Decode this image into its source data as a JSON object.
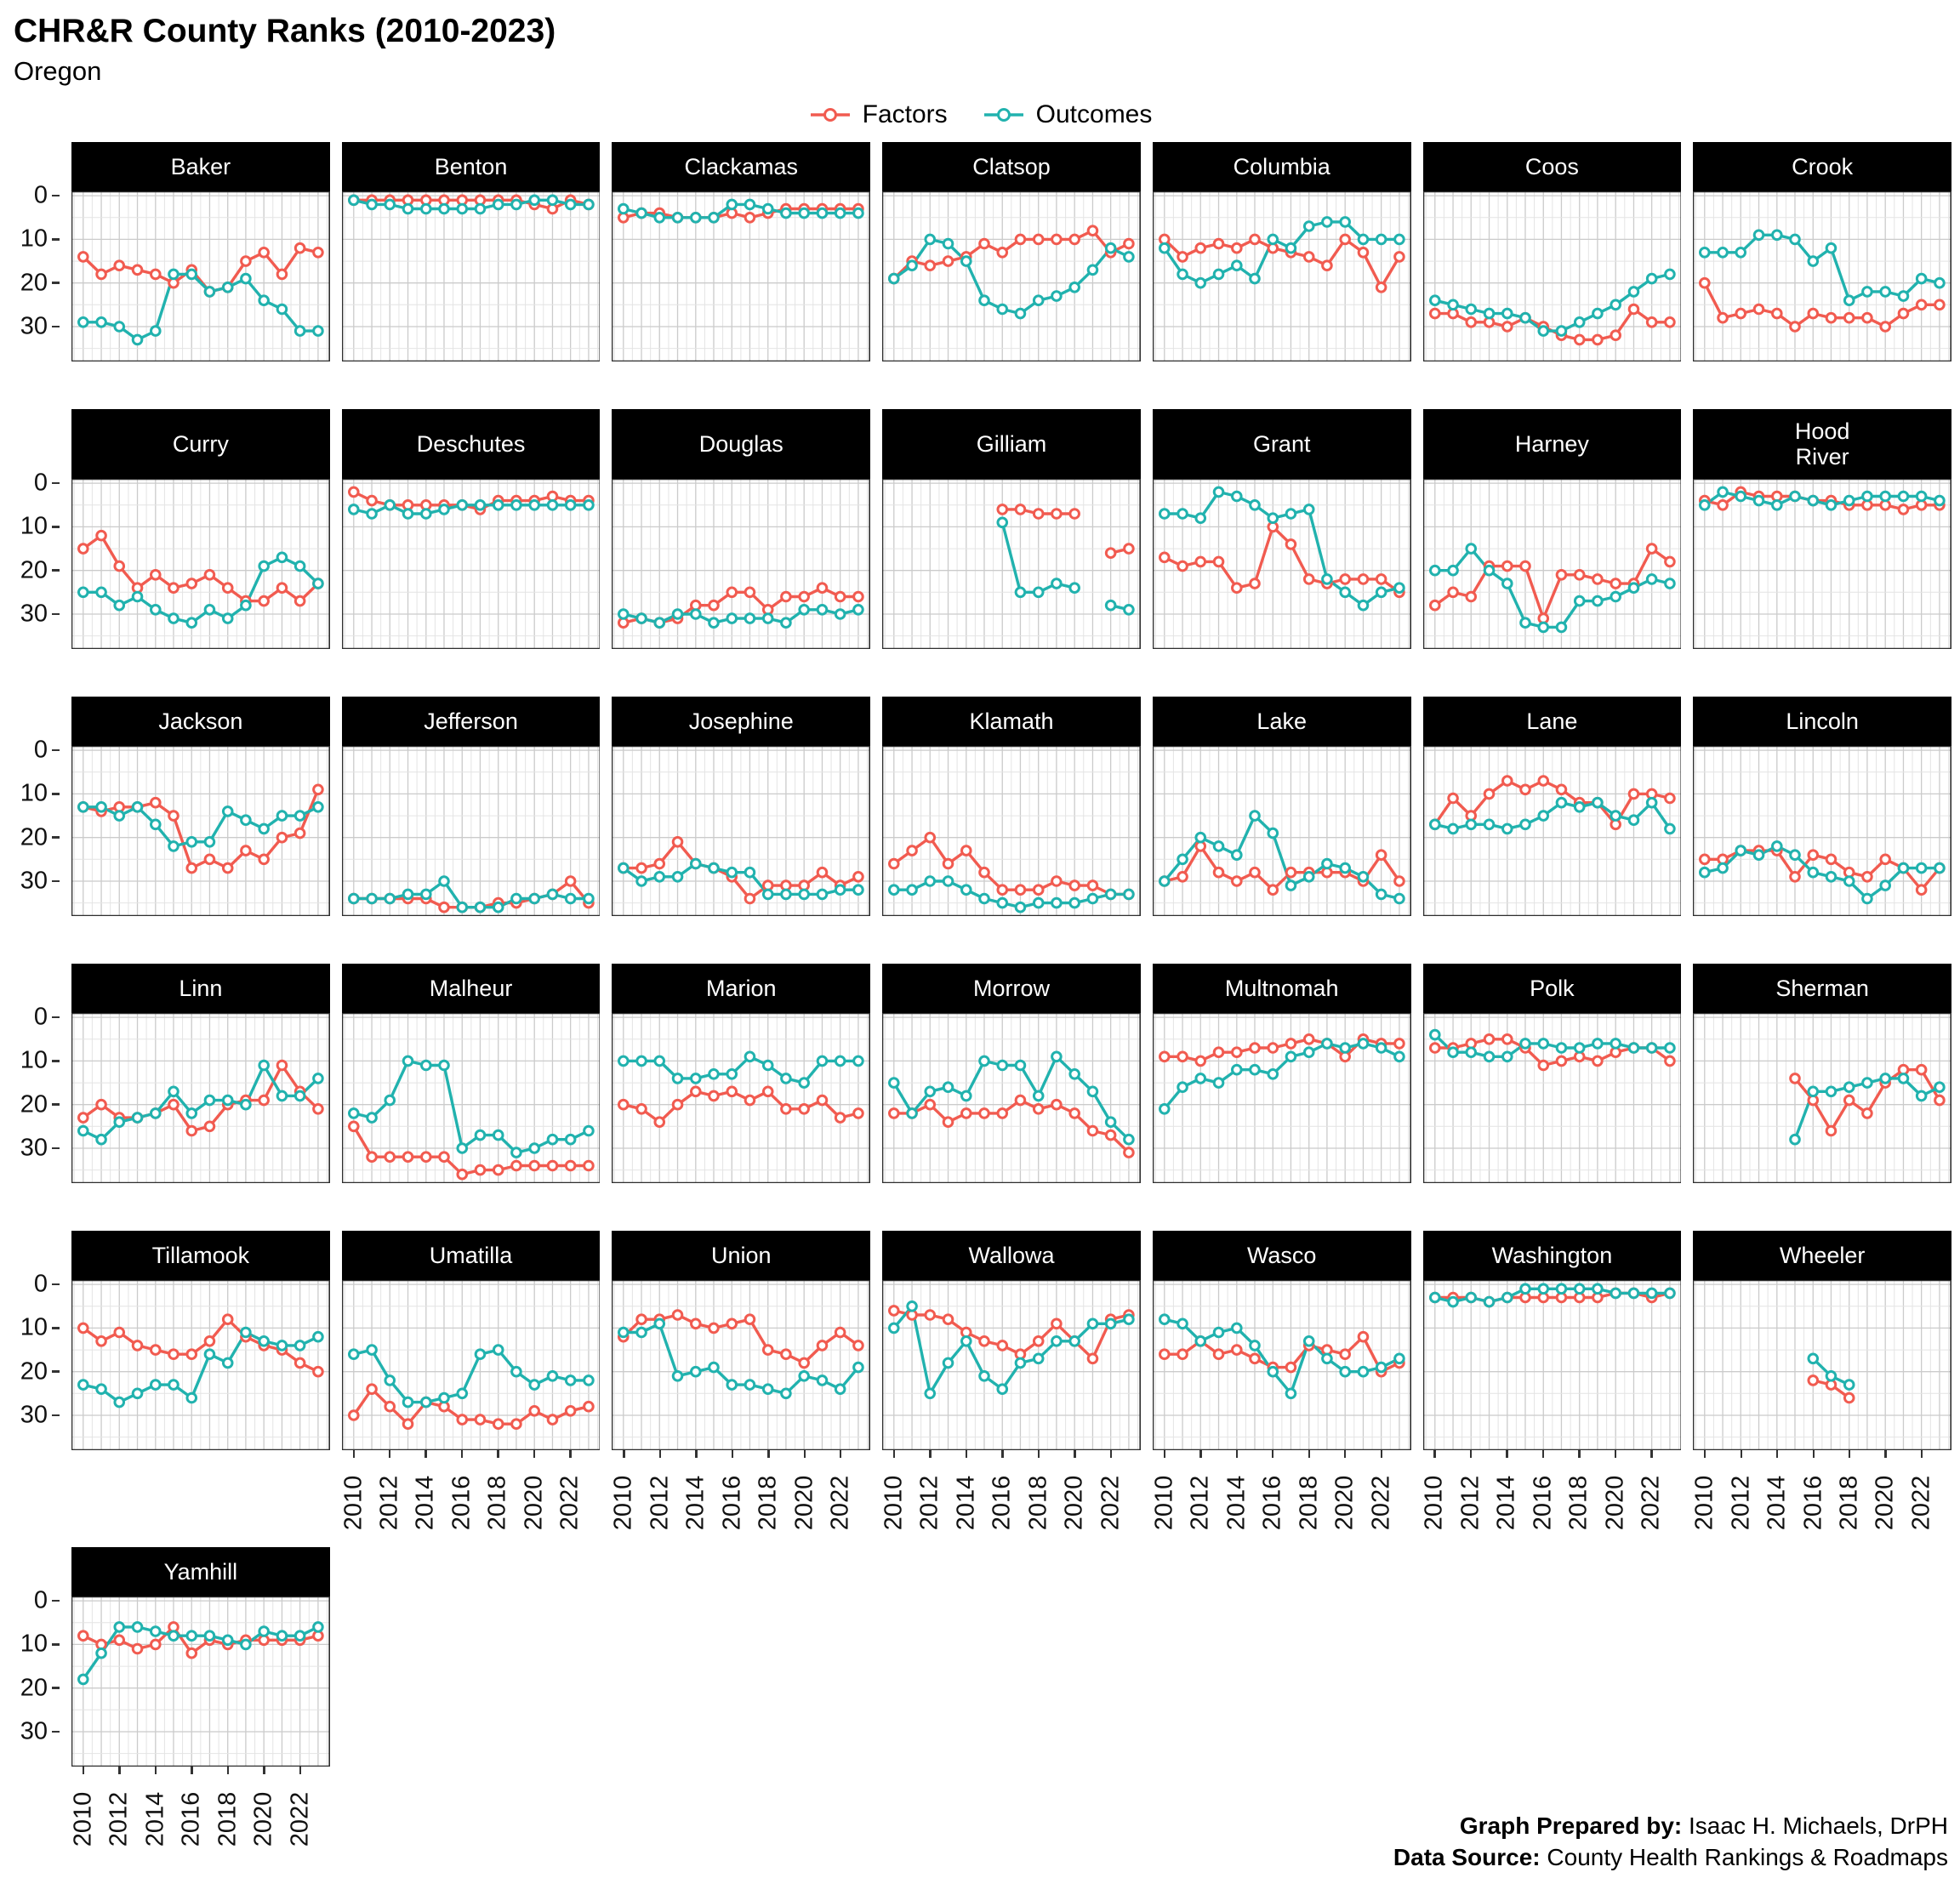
{
  "header": {
    "title": "CHR&R County Ranks (2010-2023)",
    "subtitle": "Oregon"
  },
  "legend": {
    "items": [
      {
        "label": "Factors",
        "color": "#F15B50"
      },
      {
        "label": "Outcomes",
        "color": "#21B2AE"
      }
    ]
  },
  "footer": {
    "line1_label": "Graph Prepared by:",
    "line1_text": " Isaac H. Michaels, DrPH",
    "line2_label": "Data Source:",
    "line2_text": " County Health Rankings & Roadmaps"
  },
  "chart_data": {
    "type": "line",
    "title": "CHR&R County Ranks (2010-2023)",
    "subtitle": "Oregon",
    "facet_variable": "county",
    "state": "Oregon",
    "years": [
      2010,
      2011,
      2012,
      2013,
      2014,
      2015,
      2016,
      2017,
      2018,
      2019,
      2020,
      2021,
      2022,
      2023
    ],
    "x_tick_labels": [
      "2010",
      "2012",
      "2014",
      "2016",
      "2018",
      "2020",
      "2022"
    ],
    "y_ticks": [
      0,
      10,
      20,
      30
    ],
    "y_axis_inverted": true,
    "ylim": [
      0,
      36
    ],
    "grid": true,
    "legend_position": "top",
    "series_names": [
      "Factors",
      "Outcomes"
    ],
    "colors": {
      "factors": "#F15B50",
      "outcomes": "#21B2AE"
    },
    "facets": [
      {
        "name": "Baker",
        "factors": [
          14,
          18,
          16,
          17,
          18,
          20,
          17,
          22,
          21,
          15,
          13,
          18,
          12,
          13
        ],
        "outcomes": [
          29,
          29,
          30,
          33,
          31,
          18,
          18,
          22,
          21,
          19,
          24,
          26,
          31,
          31
        ]
      },
      {
        "name": "Benton",
        "factors": [
          1,
          1,
          1,
          1,
          1,
          1,
          1,
          1,
          1,
          1,
          2,
          3,
          1,
          2
        ],
        "outcomes": [
          1,
          2,
          2,
          3,
          3,
          3,
          3,
          3,
          2,
          2,
          1,
          1,
          2,
          2
        ]
      },
      {
        "name": "Clackamas",
        "factors": [
          5,
          4,
          4,
          5,
          5,
          5,
          4,
          5,
          4,
          3,
          3,
          3,
          3,
          3
        ],
        "outcomes": [
          3,
          4,
          5,
          5,
          5,
          5,
          2,
          2,
          3,
          4,
          4,
          4,
          4,
          4
        ]
      },
      {
        "name": "Clatsop",
        "factors": [
          19,
          15,
          16,
          15,
          14,
          11,
          13,
          10,
          10,
          10,
          10,
          8,
          13,
          11
        ],
        "outcomes": [
          19,
          16,
          10,
          11,
          15,
          24,
          26,
          27,
          24,
          23,
          21,
          17,
          12,
          14
        ]
      },
      {
        "name": "Columbia",
        "factors": [
          10,
          14,
          12,
          11,
          12,
          10,
          12,
          13,
          14,
          16,
          10,
          13,
          21,
          14
        ],
        "outcomes": [
          12,
          18,
          20,
          18,
          16,
          19,
          10,
          12,
          7,
          6,
          6,
          10,
          10,
          10
        ]
      },
      {
        "name": "Coos",
        "factors": [
          27,
          27,
          29,
          29,
          30,
          28,
          30,
          32,
          33,
          33,
          32,
          26,
          29,
          29
        ],
        "outcomes": [
          24,
          25,
          26,
          27,
          27,
          28,
          31,
          31,
          29,
          27,
          25,
          22,
          19,
          18
        ]
      },
      {
        "name": "Crook",
        "factors": [
          20,
          28,
          27,
          26,
          27,
          30,
          27,
          28,
          28,
          28,
          30,
          27,
          25,
          25
        ],
        "outcomes": [
          13,
          13,
          13,
          9,
          9,
          10,
          15,
          12,
          24,
          22,
          22,
          23,
          19,
          20
        ]
      },
      {
        "name": "Curry",
        "factors": [
          15,
          12,
          19,
          24,
          21,
          24,
          23,
          21,
          24,
          27,
          27,
          24,
          27,
          23
        ],
        "outcomes": [
          25,
          25,
          28,
          26,
          29,
          31,
          32,
          29,
          31,
          28,
          19,
          17,
          19,
          23
        ]
      },
      {
        "name": "Deschutes",
        "factors": [
          2,
          4,
          5,
          5,
          5,
          5,
          5,
          6,
          4,
          4,
          4,
          3,
          4,
          4
        ],
        "outcomes": [
          6,
          7,
          5,
          7,
          7,
          6,
          5,
          5,
          5,
          5,
          5,
          5,
          5,
          5
        ]
      },
      {
        "name": "Douglas",
        "factors": [
          32,
          31,
          32,
          31,
          28,
          28,
          25,
          25,
          29,
          26,
          26,
          24,
          26,
          26
        ],
        "outcomes": [
          30,
          31,
          32,
          30,
          30,
          32,
          31,
          31,
          31,
          32,
          29,
          29,
          30,
          29
        ]
      },
      {
        "name": "Gilliam",
        "factors": [
          null,
          null,
          null,
          null,
          null,
          null,
          6,
          6,
          7,
          7,
          7,
          null,
          16,
          15
        ],
        "outcomes": [
          null,
          null,
          null,
          null,
          null,
          null,
          9,
          25,
          25,
          23,
          24,
          null,
          28,
          29
        ]
      },
      {
        "name": "Grant",
        "factors": [
          17,
          19,
          18,
          18,
          24,
          23,
          10,
          14,
          22,
          23,
          22,
          22,
          22,
          25
        ],
        "outcomes": [
          7,
          7,
          8,
          2,
          3,
          5,
          8,
          7,
          6,
          22,
          25,
          28,
          25,
          24
        ]
      },
      {
        "name": "Harney",
        "factors": [
          28,
          25,
          26,
          19,
          19,
          19,
          31,
          21,
          21,
          22,
          23,
          23,
          15,
          18
        ],
        "outcomes": [
          20,
          20,
          15,
          20,
          23,
          32,
          33,
          33,
          27,
          27,
          26,
          24,
          22,
          23
        ]
      },
      {
        "name": "Hood\nRiver",
        "factors": [
          4,
          5,
          2,
          3,
          3,
          3,
          4,
          4,
          5,
          5,
          5,
          6,
          5,
          5
        ],
        "outcomes": [
          5,
          2,
          3,
          4,
          5,
          3,
          4,
          5,
          4,
          3,
          3,
          3,
          3,
          4
        ]
      },
      {
        "name": "Jackson",
        "factors": [
          13,
          14,
          13,
          13,
          12,
          15,
          27,
          25,
          27,
          23,
          25,
          20,
          19,
          9
        ],
        "outcomes": [
          13,
          13,
          15,
          13,
          17,
          22,
          21,
          21,
          14,
          16,
          18,
          15,
          15,
          13
        ]
      },
      {
        "name": "Jefferson",
        "factors": [
          34,
          34,
          34,
          34,
          34,
          36,
          36,
          36,
          35,
          35,
          34,
          33,
          30,
          35
        ],
        "outcomes": [
          34,
          34,
          34,
          33,
          33,
          30,
          36,
          36,
          36,
          34,
          34,
          33,
          34,
          34
        ]
      },
      {
        "name": "Josephine",
        "factors": [
          27,
          27,
          26,
          21,
          26,
          27,
          29,
          34,
          31,
          31,
          31,
          28,
          31,
          29
        ],
        "outcomes": [
          27,
          30,
          29,
          29,
          26,
          27,
          28,
          28,
          33,
          33,
          33,
          33,
          32,
          32
        ]
      },
      {
        "name": "Klamath",
        "factors": [
          26,
          23,
          20,
          26,
          23,
          28,
          32,
          32,
          32,
          30,
          31,
          31,
          33,
          33
        ],
        "outcomes": [
          32,
          32,
          30,
          30,
          32,
          34,
          35,
          36,
          35,
          35,
          35,
          34,
          33,
          33
        ]
      },
      {
        "name": "Lake",
        "factors": [
          30,
          29,
          22,
          28,
          30,
          28,
          32,
          28,
          28,
          28,
          28,
          30,
          24,
          30
        ],
        "outcomes": [
          30,
          25,
          20,
          22,
          24,
          15,
          19,
          31,
          29,
          26,
          27,
          29,
          33,
          34
        ]
      },
      {
        "name": "Lane",
        "factors": [
          17,
          11,
          15,
          10,
          7,
          9,
          7,
          9,
          12,
          12,
          17,
          10,
          10,
          11
        ],
        "outcomes": [
          17,
          18,
          17,
          17,
          18,
          17,
          15,
          12,
          13,
          12,
          15,
          16,
          12,
          18
        ]
      },
      {
        "name": "Lincoln",
        "factors": [
          25,
          25,
          23,
          23,
          23,
          29,
          24,
          25,
          28,
          29,
          25,
          27,
          32,
          27
        ],
        "outcomes": [
          28,
          27,
          23,
          24,
          22,
          24,
          28,
          29,
          30,
          34,
          31,
          27,
          27,
          27
        ]
      },
      {
        "name": "Linn",
        "factors": [
          23,
          20,
          23,
          23,
          22,
          20,
          26,
          25,
          20,
          19,
          19,
          11,
          17,
          21
        ],
        "outcomes": [
          26,
          28,
          24,
          23,
          22,
          17,
          22,
          19,
          19,
          20,
          11,
          18,
          18,
          14
        ]
      },
      {
        "name": "Malheur",
        "factors": [
          25,
          32,
          32,
          32,
          32,
          32,
          36,
          35,
          35,
          34,
          34,
          34,
          34,
          34
        ],
        "outcomes": [
          22,
          23,
          19,
          10,
          11,
          11,
          30,
          27,
          27,
          31,
          30,
          28,
          28,
          26
        ]
      },
      {
        "name": "Marion",
        "factors": [
          20,
          21,
          24,
          20,
          17,
          18,
          17,
          19,
          17,
          21,
          21,
          19,
          23,
          22
        ],
        "outcomes": [
          10,
          10,
          10,
          14,
          14,
          13,
          13,
          9,
          11,
          14,
          15,
          10,
          10,
          10
        ]
      },
      {
        "name": "Morrow",
        "factors": [
          22,
          22,
          20,
          24,
          22,
          22,
          22,
          19,
          21,
          20,
          22,
          26,
          27,
          31
        ],
        "outcomes": [
          15,
          22,
          17,
          16,
          18,
          10,
          11,
          11,
          18,
          9,
          13,
          17,
          24,
          28
        ]
      },
      {
        "name": "Multnomah",
        "factors": [
          9,
          9,
          10,
          8,
          8,
          7,
          7,
          6,
          5,
          6,
          9,
          5,
          6,
          6
        ],
        "outcomes": [
          21,
          16,
          14,
          15,
          12,
          12,
          13,
          9,
          8,
          6,
          7,
          6,
          7,
          9
        ]
      },
      {
        "name": "Polk",
        "factors": [
          7,
          7,
          6,
          5,
          5,
          7,
          11,
          10,
          9,
          10,
          8,
          7,
          7,
          10
        ],
        "outcomes": [
          4,
          8,
          8,
          9,
          9,
          6,
          6,
          7,
          7,
          6,
          6,
          7,
          7,
          7
        ]
      },
      {
        "name": "Sherman",
        "factors": [
          null,
          null,
          null,
          null,
          null,
          14,
          19,
          26,
          19,
          22,
          15,
          12,
          12,
          19
        ],
        "outcomes": [
          null,
          null,
          null,
          null,
          null,
          28,
          17,
          17,
          16,
          15,
          14,
          14,
          18,
          16
        ]
      },
      {
        "name": "Tillamook",
        "factors": [
          10,
          13,
          11,
          14,
          15,
          16,
          16,
          13,
          8,
          12,
          14,
          15,
          18,
          20
        ],
        "outcomes": [
          23,
          24,
          27,
          25,
          23,
          23,
          26,
          16,
          18,
          11,
          13,
          14,
          14,
          12
        ]
      },
      {
        "name": "Umatilla",
        "factors": [
          30,
          24,
          28,
          32,
          27,
          28,
          31,
          31,
          32,
          32,
          29,
          31,
          29,
          28
        ],
        "outcomes": [
          16,
          15,
          22,
          27,
          27,
          26,
          25,
          16,
          15,
          20,
          23,
          21,
          22,
          22
        ]
      },
      {
        "name": "Union",
        "factors": [
          12,
          8,
          8,
          7,
          9,
          10,
          9,
          8,
          15,
          16,
          18,
          14,
          11,
          14
        ],
        "outcomes": [
          11,
          11,
          9,
          21,
          20,
          19,
          23,
          23,
          24,
          25,
          21,
          22,
          24,
          19
        ]
      },
      {
        "name": "Wallowa",
        "factors": [
          6,
          7,
          7,
          8,
          11,
          13,
          14,
          16,
          13,
          9,
          13,
          17,
          8,
          7
        ],
        "outcomes": [
          10,
          5,
          25,
          18,
          13,
          21,
          24,
          18,
          17,
          13,
          13,
          9,
          9,
          8
        ]
      },
      {
        "name": "Wasco",
        "factors": [
          16,
          16,
          13,
          16,
          15,
          17,
          19,
          19,
          14,
          15,
          16,
          12,
          20,
          18
        ],
        "outcomes": [
          8,
          9,
          13,
          11,
          10,
          14,
          20,
          25,
          13,
          17,
          20,
          20,
          19,
          17
        ]
      },
      {
        "name": "Washington",
        "factors": [
          3,
          3,
          3,
          4,
          3,
          3,
          3,
          3,
          3,
          3,
          2,
          2,
          3,
          2
        ],
        "outcomes": [
          3,
          4,
          3,
          4,
          3,
          1,
          1,
          1,
          1,
          1,
          2,
          2,
          2,
          2
        ]
      },
      {
        "name": "Wheeler",
        "factors": [
          null,
          null,
          null,
          null,
          null,
          null,
          22,
          23,
          26,
          null,
          null,
          null,
          null,
          null
        ],
        "outcomes": [
          null,
          null,
          null,
          null,
          null,
          null,
          17,
          21,
          23,
          null,
          null,
          null,
          null,
          null
        ]
      },
      {
        "name": "Yamhill",
        "factors": [
          8,
          10,
          9,
          11,
          10,
          6,
          12,
          9,
          10,
          9,
          9,
          9,
          9,
          8
        ],
        "outcomes": [
          18,
          12,
          6,
          6,
          7,
          8,
          8,
          8,
          9,
          10,
          7,
          8,
          8,
          6
        ]
      }
    ]
  }
}
